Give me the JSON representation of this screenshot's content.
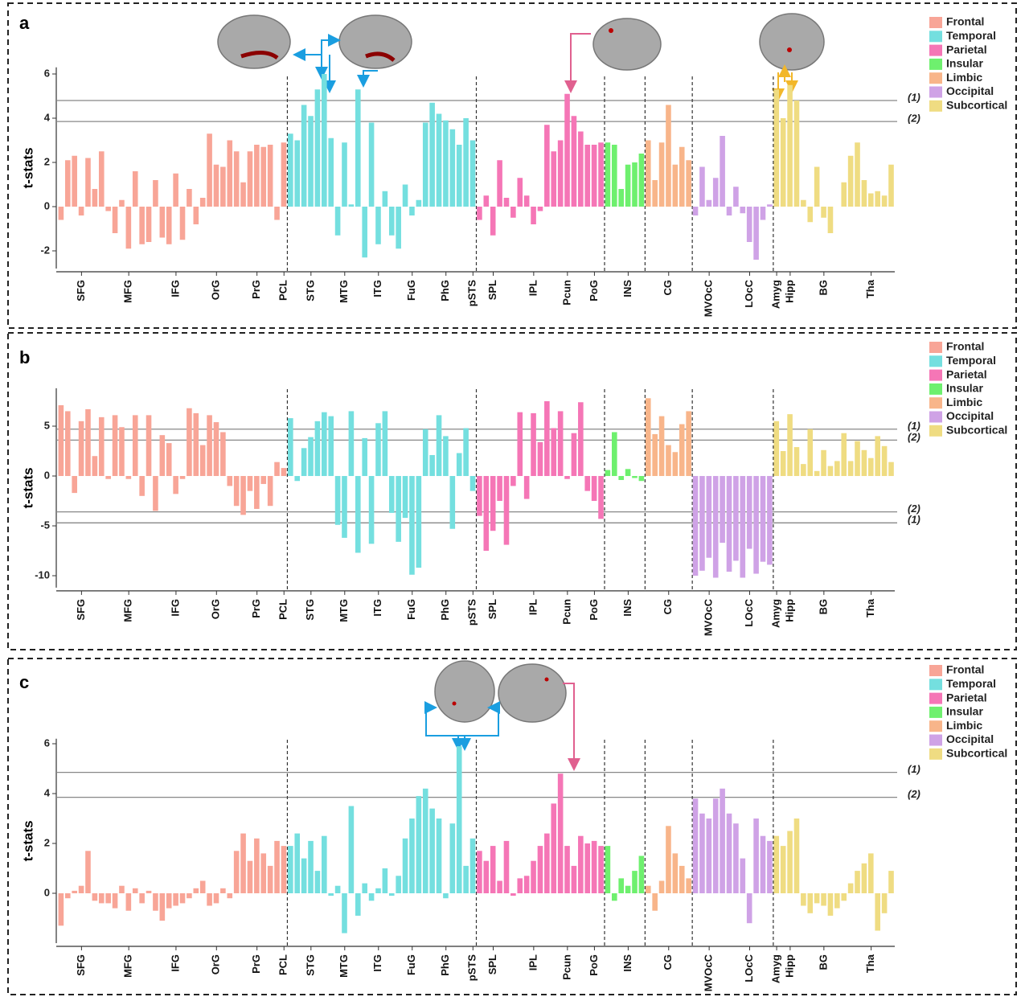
{
  "chart_data": [
    {
      "type": "bar",
      "panel": "a",
      "ylabel": "t-stats",
      "ylim": [
        -2.8,
        6.3
      ],
      "yticks": [
        -2,
        0,
        2,
        4,
        6
      ],
      "legend": "top-right",
      "thresholds": [
        {
          "value": 4.8,
          "label": "(1)"
        },
        {
          "value": 3.85,
          "label": "(2)"
        }
      ],
      "series": [
        {
          "name": "Frontal",
          "color": "#f8a597",
          "categories": [
            null,
            null,
            null,
            "SFG",
            null,
            null,
            null,
            null,
            null,
            null,
            "MFG",
            null,
            null,
            null,
            null,
            null,
            null,
            "IFG",
            null,
            null,
            null,
            null,
            null,
            "OrG",
            null,
            null,
            null,
            null,
            null,
            "PrG",
            null,
            null,
            null,
            "PCL"
          ],
          "values": [
            -0.6,
            2.1,
            2.3,
            -0.4,
            2.2,
            0.8,
            2.5,
            -0.2,
            -1.2,
            0.3,
            -1.9,
            1.6,
            -1.7,
            -1.6,
            1.2,
            -1.4,
            -1.7,
            1.5,
            -1.5,
            0.8,
            -0.8,
            0.4,
            3.3,
            1.9,
            1.8,
            3.0,
            2.5,
            1.1,
            2.5,
            2.8,
            2.7,
            2.8,
            -0.6,
            2.9
          ]
        },
        {
          "name": "Temporal",
          "color": "#74dfdf",
          "categories": [
            null,
            null,
            null,
            "STG",
            null,
            null,
            null,
            null,
            "MTG",
            null,
            null,
            null,
            null,
            "ITG",
            null,
            null,
            null,
            null,
            "FuG",
            null,
            null,
            null,
            null,
            "PhG",
            null,
            null,
            null,
            "pSTS"
          ],
          "values": [
            3.3,
            3.0,
            4.6,
            4.1,
            5.3,
            6.0,
            3.1,
            -1.3,
            2.9,
            0.1,
            5.3,
            -2.3,
            3.8,
            -1.7,
            0.7,
            -1.3,
            -1.9,
            1.0,
            -0.4,
            0.3,
            3.8,
            4.7,
            4.2,
            3.9,
            3.5,
            2.8,
            4.0,
            3.0
          ]
        },
        {
          "name": "Parietal",
          "color": "#f576b6",
          "categories": [
            null,
            null,
            "SPL",
            null,
            null,
            null,
            null,
            null,
            "IPL",
            null,
            null,
            null,
            null,
            "Pcun",
            null,
            null,
            null,
            "PoG",
            null
          ],
          "values": [
            -0.6,
            0.5,
            -1.3,
            2.1,
            0.4,
            -0.5,
            1.3,
            0.5,
            -0.8,
            -0.2,
            3.7,
            2.5,
            3.0,
            5.1,
            4.1,
            3.4,
            2.8,
            2.8,
            2.9
          ]
        },
        {
          "name": "Insular",
          "color": "#6ef06e",
          "categories": [
            null,
            null,
            null,
            "INS",
            null,
            null
          ],
          "values": [
            2.9,
            2.8,
            0.8,
            1.9,
            2.0,
            2.4
          ]
        },
        {
          "name": "Limbic",
          "color": "#f8b58a",
          "categories": [
            null,
            null,
            null,
            "CG",
            null,
            null,
            null
          ],
          "values": [
            3.0,
            1.2,
            2.9,
            4.6,
            1.9,
            2.7,
            2.1
          ]
        },
        {
          "name": "Occipital",
          "color": "#cfa2e6",
          "categories": [
            null,
            null,
            "MVOcC",
            null,
            null,
            null,
            null,
            null,
            "LOcC",
            null,
            null,
            null
          ],
          "values": [
            -0.4,
            1.8,
            0.3,
            1.3,
            3.2,
            -0.4,
            0.9,
            -0.3,
            -1.6,
            -2.4,
            -0.6,
            0.1
          ]
        },
        {
          "name": "Subcortical",
          "color": "#efdc82",
          "categories": [
            "Amyg",
            null,
            "Hipp",
            null,
            null,
            null,
            null,
            "BG",
            null,
            null,
            null,
            null,
            null,
            null,
            "Tha",
            null,
            null,
            null
          ],
          "values": [
            5.3,
            4.0,
            5.5,
            4.8,
            0.3,
            -0.7,
            1.8,
            -0.5,
            -1.2,
            0.0,
            1.1,
            2.3,
            2.9,
            1.2,
            0.6,
            0.7,
            0.5,
            1.9
          ]
        }
      ]
    },
    {
      "type": "bar",
      "panel": "b",
      "ylabel": "t-stats",
      "ylim": [
        -11.2,
        8.8
      ],
      "yticks": [
        -10,
        -5,
        0,
        5
      ],
      "legend": "top-right",
      "thresholds": [
        {
          "value": 4.7,
          "label": "(1)"
        },
        {
          "value": 3.6,
          "label": "(2)"
        },
        {
          "value": -3.6,
          "label": "(2)"
        },
        {
          "value": -4.7,
          "label": "(1)"
        }
      ],
      "series": [
        {
          "name": "Frontal",
          "color": "#f8a597",
          "categories": [
            null,
            null,
            null,
            "SFG",
            null,
            null,
            null,
            null,
            null,
            null,
            "MFG",
            null,
            null,
            null,
            null,
            null,
            null,
            "IFG",
            null,
            null,
            null,
            null,
            null,
            "OrG",
            null,
            null,
            null,
            null,
            null,
            "PrG",
            null,
            null,
            null,
            "PCL"
          ],
          "values": [
            7.1,
            6.5,
            -1.7,
            5.5,
            6.7,
            2.0,
            5.9,
            -0.3,
            6.1,
            4.9,
            -0.3,
            6.1,
            -2.0,
            6.1,
            -3.5,
            4.1,
            3.3,
            -1.8,
            -0.3,
            6.8,
            6.3,
            3.1,
            6.1,
            5.4,
            4.4,
            -1.0,
            -3.0,
            -3.9,
            -1.5,
            -3.3,
            -0.8,
            -3.0,
            1.4,
            0.8
          ]
        },
        {
          "name": "Temporal",
          "color": "#74dfdf",
          "categories": [
            null,
            null,
            null,
            "STG",
            null,
            null,
            null,
            null,
            "MTG",
            null,
            null,
            null,
            null,
            "ITG",
            null,
            null,
            null,
            null,
            "FuG",
            null,
            null,
            null,
            null,
            "PhG",
            null,
            null,
            null,
            "pSTS"
          ],
          "values": [
            5.8,
            -0.5,
            2.8,
            3.9,
            5.5,
            6.4,
            6.0,
            -4.9,
            -6.2,
            6.5,
            -7.7,
            3.8,
            -6.8,
            5.3,
            6.5,
            -3.7,
            -6.6,
            -4.2,
            -9.9,
            -9.2,
            4.7,
            2.1,
            6.1,
            4.0,
            -5.3,
            2.3,
            4.8,
            -1.5
          ]
        },
        {
          "name": "Parietal",
          "color": "#f576b6",
          "categories": [
            null,
            null,
            "SPL",
            null,
            null,
            null,
            null,
            null,
            "IPL",
            null,
            null,
            null,
            null,
            "Pcun",
            null,
            null,
            null,
            "PoG",
            null
          ],
          "values": [
            -4.0,
            -7.5,
            -5.5,
            -2.5,
            -6.9,
            -1.0,
            6.4,
            -2.3,
            6.3,
            3.4,
            7.5,
            4.8,
            6.5,
            -0.3,
            4.3,
            7.4,
            -1.5,
            -2.5,
            -4.3
          ]
        },
        {
          "name": "Insular",
          "color": "#6ef06e",
          "categories": [
            null,
            null,
            null,
            "INS",
            null,
            null
          ],
          "values": [
            0.6,
            4.4,
            -0.4,
            0.7,
            -0.2,
            -0.5
          ]
        },
        {
          "name": "Limbic",
          "color": "#f8b58a",
          "categories": [
            null,
            null,
            null,
            "CG",
            null,
            null,
            null
          ],
          "values": [
            7.8,
            4.2,
            6.0,
            3.1,
            2.4,
            5.2,
            6.5
          ]
        },
        {
          "name": "Occipital",
          "color": "#cfa2e6",
          "categories": [
            null,
            null,
            "MVOcC",
            null,
            null,
            null,
            null,
            null,
            "LOcC",
            null,
            null,
            null
          ],
          "values": [
            -10.0,
            -9.5,
            -8.2,
            -10.2,
            -6.7,
            -9.6,
            -8.5,
            -10.2,
            -7.3,
            -9.8,
            -8.6,
            -8.9
          ]
        },
        {
          "name": "Subcortical",
          "color": "#efdc82",
          "categories": [
            "Amyg",
            null,
            "Hipp",
            null,
            null,
            null,
            null,
            "BG",
            null,
            null,
            null,
            null,
            null,
            null,
            "Tha",
            null,
            null,
            null
          ],
          "values": [
            5.5,
            2.5,
            6.2,
            2.9,
            1.2,
            4.7,
            0.5,
            2.6,
            1.0,
            1.5,
            4.3,
            1.5,
            3.5,
            2.6,
            1.8,
            4.0,
            3.0,
            1.4
          ]
        }
      ]
    },
    {
      "type": "bar",
      "panel": "c",
      "ylabel": "t-stats",
      "ylim": [
        -2.0,
        6.2
      ],
      "yticks": [
        0,
        2,
        4,
        6
      ],
      "legend": "top-right",
      "thresholds": [
        {
          "value": 4.85,
          "label": "(1)"
        },
        {
          "value": 3.85,
          "label": "(2)"
        }
      ],
      "series": [
        {
          "name": "Frontal",
          "color": "#f8a597",
          "categories": [
            null,
            null,
            null,
            "SFG",
            null,
            null,
            null,
            null,
            null,
            null,
            "MFG",
            null,
            null,
            null,
            null,
            null,
            null,
            "IFG",
            null,
            null,
            null,
            null,
            null,
            "OrG",
            null,
            null,
            null,
            null,
            null,
            "PrG",
            null,
            null,
            null,
            "PCL"
          ],
          "values": [
            -1.3,
            -0.2,
            0.1,
            0.3,
            1.7,
            -0.3,
            -0.4,
            -0.4,
            -0.6,
            0.3,
            -0.7,
            0.2,
            -0.4,
            0.1,
            -0.7,
            -1.1,
            -0.6,
            -0.5,
            -0.4,
            -0.2,
            0.2,
            0.5,
            -0.5,
            -0.4,
            0.2,
            -0.2,
            1.7,
            2.4,
            1.3,
            2.2,
            1.6,
            1.1,
            2.1,
            1.9
          ]
        },
        {
          "name": "Temporal",
          "color": "#74dfdf",
          "categories": [
            null,
            null,
            null,
            "STG",
            null,
            null,
            null,
            null,
            "MTG",
            null,
            null,
            null,
            null,
            "ITG",
            null,
            null,
            null,
            null,
            "FuG",
            null,
            null,
            null,
            null,
            "PhG",
            null,
            null,
            null,
            "pSTS"
          ],
          "values": [
            1.9,
            2.4,
            1.4,
            2.1,
            0.9,
            2.3,
            -0.1,
            0.3,
            -1.6,
            3.5,
            -0.9,
            0.4,
            -0.3,
            0.2,
            1.0,
            -0.1,
            0.7,
            2.2,
            3.0,
            3.9,
            4.2,
            3.4,
            3.0,
            -0.2,
            2.8,
            5.9,
            1.1,
            2.2
          ]
        },
        {
          "name": "Parietal",
          "color": "#f576b6",
          "categories": [
            null,
            null,
            "SPL",
            null,
            null,
            null,
            null,
            null,
            "IPL",
            null,
            null,
            null,
            null,
            "Pcun",
            null,
            null,
            null,
            "PoG",
            null
          ],
          "values": [
            1.7,
            1.3,
            1.9,
            0.5,
            2.1,
            -0.1,
            0.6,
            0.7,
            1.3,
            1.9,
            2.4,
            3.6,
            4.8,
            1.9,
            1.1,
            2.3,
            2.0,
            2.1,
            1.9
          ]
        },
        {
          "name": "Insular",
          "color": "#6ef06e",
          "categories": [
            null,
            null,
            null,
            "INS",
            null,
            null
          ],
          "values": [
            1.9,
            -0.3,
            0.6,
            0.3,
            0.9,
            1.5
          ]
        },
        {
          "name": "Limbic",
          "color": "#f8b58a",
          "categories": [
            null,
            null,
            null,
            "CG",
            null,
            null,
            null
          ],
          "values": [
            0.3,
            -0.7,
            0.5,
            2.7,
            1.6,
            1.1,
            0.6
          ]
        },
        {
          "name": "Occipital",
          "color": "#cfa2e6",
          "categories": [
            null,
            null,
            "MVOcC",
            null,
            null,
            null,
            null,
            null,
            "LOcC",
            null,
            null,
            null
          ],
          "values": [
            3.8,
            3.2,
            3.0,
            3.8,
            4.2,
            3.2,
            2.8,
            1.4,
            -1.2,
            3.0,
            2.3,
            2.1
          ]
        },
        {
          "name": "Subcortical",
          "color": "#efdc82",
          "categories": [
            "Amyg",
            null,
            "Hipp",
            null,
            null,
            null,
            null,
            "BG",
            null,
            null,
            null,
            null,
            null,
            null,
            "Tha",
            null,
            null,
            null
          ],
          "values": [
            2.3,
            1.9,
            2.5,
            3.0,
            -0.5,
            -0.8,
            -0.4,
            -0.5,
            -0.9,
            -0.6,
            -0.3,
            0.4,
            0.9,
            1.2,
            1.6,
            -1.5,
            -0.8,
            0.9
          ]
        }
      ]
    }
  ]
}
